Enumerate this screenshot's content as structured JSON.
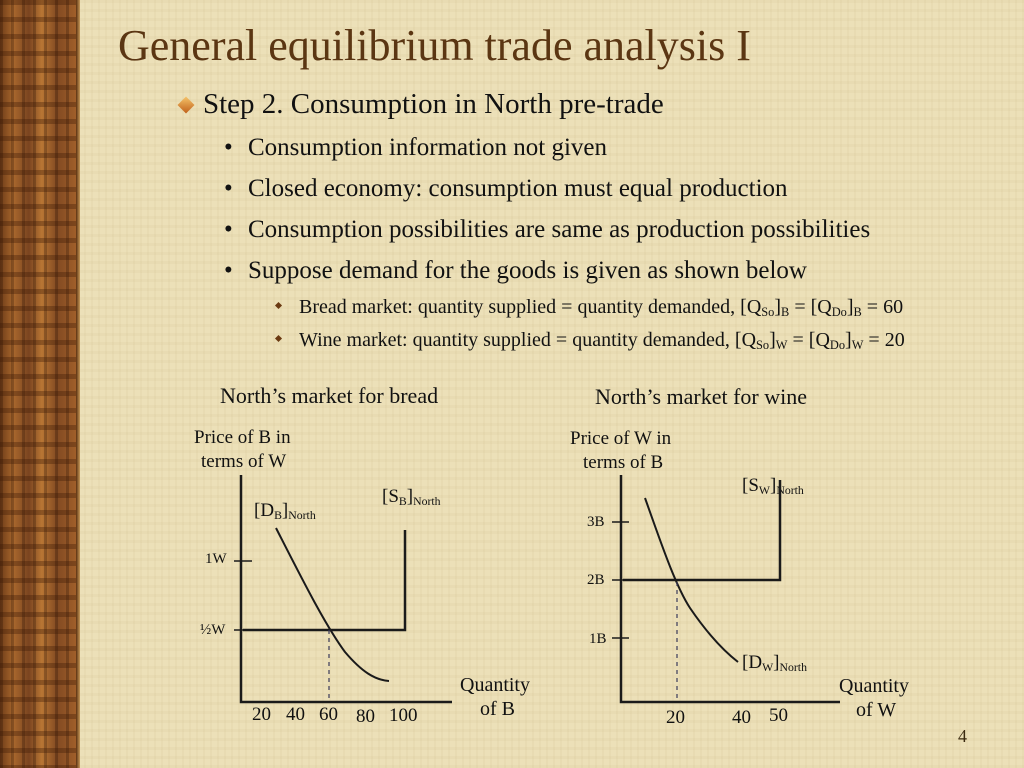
{
  "title": "General equilibrium trade analysis I",
  "step": "Step 2. Consumption in North pre-trade",
  "bullets": [
    "Consumption information not given",
    "Closed economy: consumption must equal production",
    "Consumption possibilities are same as production possibilities",
    "Suppose demand for the goods is given as shown below"
  ],
  "sub_bullets": {
    "bread": {
      "prefix": "Bread market: quantity supplied = quantity demanded, [Q",
      "s1": "So",
      "mid1": "]",
      "s2": "B",
      "mid2": " = [Q",
      "s3": "Do",
      "mid3": "]",
      "s4": "B",
      "suffix": " = 60"
    },
    "wine": {
      "prefix": "Wine market: quantity supplied = quantity demanded, [Q",
      "s1": "So",
      "mid1": "]",
      "s2": "W",
      "mid2": " = [Q",
      "s3": "Do",
      "mid3": "]",
      "s4": "W",
      "suffix": " = 20"
    }
  },
  "bread_chart": {
    "caption": "North’s market for bread",
    "ylabel_1": "Price of B in",
    "ylabel_2": "terms of W",
    "xlabel_1": "Quantity",
    "xlabel_2": "of B",
    "y_ticks": [
      "1W",
      "½W"
    ],
    "x_ticks": [
      "20",
      "40",
      "60",
      "80",
      "100"
    ],
    "demand_label": {
      "main": "[D",
      "sub1": "B",
      "close": "]",
      "sub2": "North"
    },
    "supply_label": {
      "main": "[S",
      "sub1": "B",
      "close": "]",
      "sub2": "North"
    }
  },
  "wine_chart": {
    "caption": "North’s market for wine",
    "ylabel_1": "Price of W in",
    "ylabel_2": "terms of B",
    "xlabel_1": "Quantity",
    "xlabel_2": "of W",
    "y_ticks": [
      "3B",
      "2B",
      "1B"
    ],
    "x_ticks": [
      "20",
      "40",
      "50"
    ],
    "demand_label": {
      "main": "[D",
      "sub1": "W",
      "close": "]",
      "sub2": "North"
    },
    "supply_label": {
      "main": "[S",
      "sub1": "W",
      "close": "]",
      "sub2": "North"
    }
  },
  "page_number": "4"
}
